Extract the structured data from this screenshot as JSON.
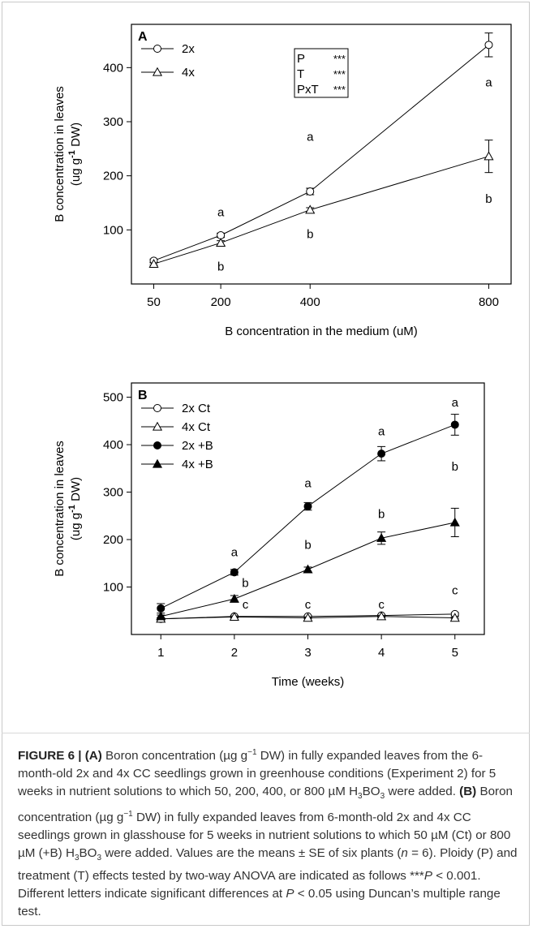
{
  "chart_data": [
    {
      "panel": "A",
      "type": "line",
      "xlabel": "B concentration in the medium (uM)",
      "ylabel": [
        "B concentration in leaves",
        "(ug g-1 DW)"
      ],
      "x": [
        50,
        200,
        400,
        800
      ],
      "xticks": [
        50,
        200,
        400,
        800
      ],
      "yticks": [
        100,
        200,
        300,
        400
      ],
      "xlim": [
        0,
        850
      ],
      "ylim": [
        0,
        480
      ],
      "series": [
        {
          "name": "2x",
          "marker": "circle-open",
          "values": [
            43,
            90,
            171,
            442
          ],
          "errors": [
            3,
            4,
            6,
            22
          ],
          "letters": [
            "",
            "a",
            "a",
            "a"
          ],
          "letter_pos": [
            "",
            125,
            265,
            365
          ]
        },
        {
          "name": "4x",
          "marker": "triangle-open",
          "values": [
            37,
            76,
            137,
            236
          ],
          "errors": [
            2,
            4,
            4,
            30
          ],
          "letters": [
            "",
            "b",
            "b",
            "b"
          ],
          "letter_pos": [
            "",
            25,
            85,
            150
          ]
        }
      ],
      "stats_box": [
        [
          "P",
          "***"
        ],
        [
          "T",
          "***"
        ],
        [
          "PxT",
          "***"
        ]
      ]
    },
    {
      "panel": "B",
      "type": "line",
      "xlabel": "Time (weeks)",
      "ylabel": [
        "B concentration in leaves",
        "(ug g-1 DW)"
      ],
      "x": [
        1,
        2,
        3,
        4,
        5
      ],
      "xticks": [
        1,
        2,
        3,
        4,
        5
      ],
      "yticks": [
        100,
        200,
        300,
        400,
        500
      ],
      "xlim": [
        0.6,
        5.4
      ],
      "ylim": [
        0,
        530
      ],
      "series": [
        {
          "name": "2x Ct",
          "marker": "circle-open",
          "values": [
            33,
            38,
            38,
            40,
            43
          ],
          "errors": [
            2,
            2,
            2,
            2,
            3
          ]
        },
        {
          "name": "4x Ct",
          "marker": "triangle-open",
          "values": [
            33,
            37,
            35,
            38,
            35
          ],
          "errors": [
            2,
            2,
            2,
            2,
            2
          ]
        },
        {
          "name": "2x +B",
          "marker": "circle-filled",
          "values": [
            55,
            131,
            270,
            381,
            442
          ],
          "errors": [
            10,
            6,
            8,
            15,
            22
          ]
        },
        {
          "name": "4x +B",
          "marker": "triangle-filled",
          "values": [
            38,
            75,
            137,
            203,
            236
          ],
          "errors": [
            3,
            7,
            5,
            13,
            30
          ]
        }
      ],
      "letters": [
        {
          "x": 2,
          "y": 165,
          "text": "a"
        },
        {
          "x": 3,
          "y": 310,
          "text": "a"
        },
        {
          "x": 4,
          "y": 420,
          "text": "a"
        },
        {
          "x": 5,
          "y": 480,
          "text": "a"
        },
        {
          "x": 2.15,
          "y": 100,
          "text": "b"
        },
        {
          "x": 3,
          "y": 180,
          "text": "b"
        },
        {
          "x": 4,
          "y": 245,
          "text": "b"
        },
        {
          "x": 5,
          "y": 345,
          "text": "b"
        },
        {
          "x": 2.15,
          "y": 55,
          "text": "c"
        },
        {
          "x": 3,
          "y": 55,
          "text": "c"
        },
        {
          "x": 4,
          "y": 55,
          "text": "c"
        },
        {
          "x": 5,
          "y": 85,
          "text": "c"
        }
      ]
    }
  ],
  "caption": {
    "lead": "FIGURE 6 | ",
    "a_label": "(A)",
    "a_text1": " Boron concentration (µg g",
    "a_sup": "−1",
    "a_text2": " DW) in fully expanded leaves from the 6-month-old 2x and 4x CC seedlings grown in greenhouse conditions (Experiment 2) for 5 weeks in nutrient solutions to which 50, 200, 400, or 800 µM H",
    "a_sub1": "3",
    "a_text3": "BO",
    "a_sub2": "3",
    "a_text4": " were added. ",
    "b_label": "(B)",
    "b_text1": " Boron concentration (µg g",
    "b_sup": "−1",
    "b_text2": " DW) in fully expanded leaves from 6-month-old 2x and 4x CC seedlings grown in glasshouse for 5 weeks in nutrient solutions to which 50 µM (Ct) or 800 µM (+B) H",
    "b_sub1": "3",
    "b_text3": "BO",
    "b_sub2": "3",
    "b_text4": " were added. Values are the means ± SE of six plants (",
    "n_i": "n",
    "b_text5": " = 6). Ploidy (P) and treatment (T) effects tested by two-way ANOVA are indicated as follows ***",
    "p_i": "P",
    "b_text6": " < 0.001. Different letters indicate significant differences at ",
    "p2_i": "P",
    "b_text7": " < 0.05 using Duncan’s multiple range test."
  }
}
